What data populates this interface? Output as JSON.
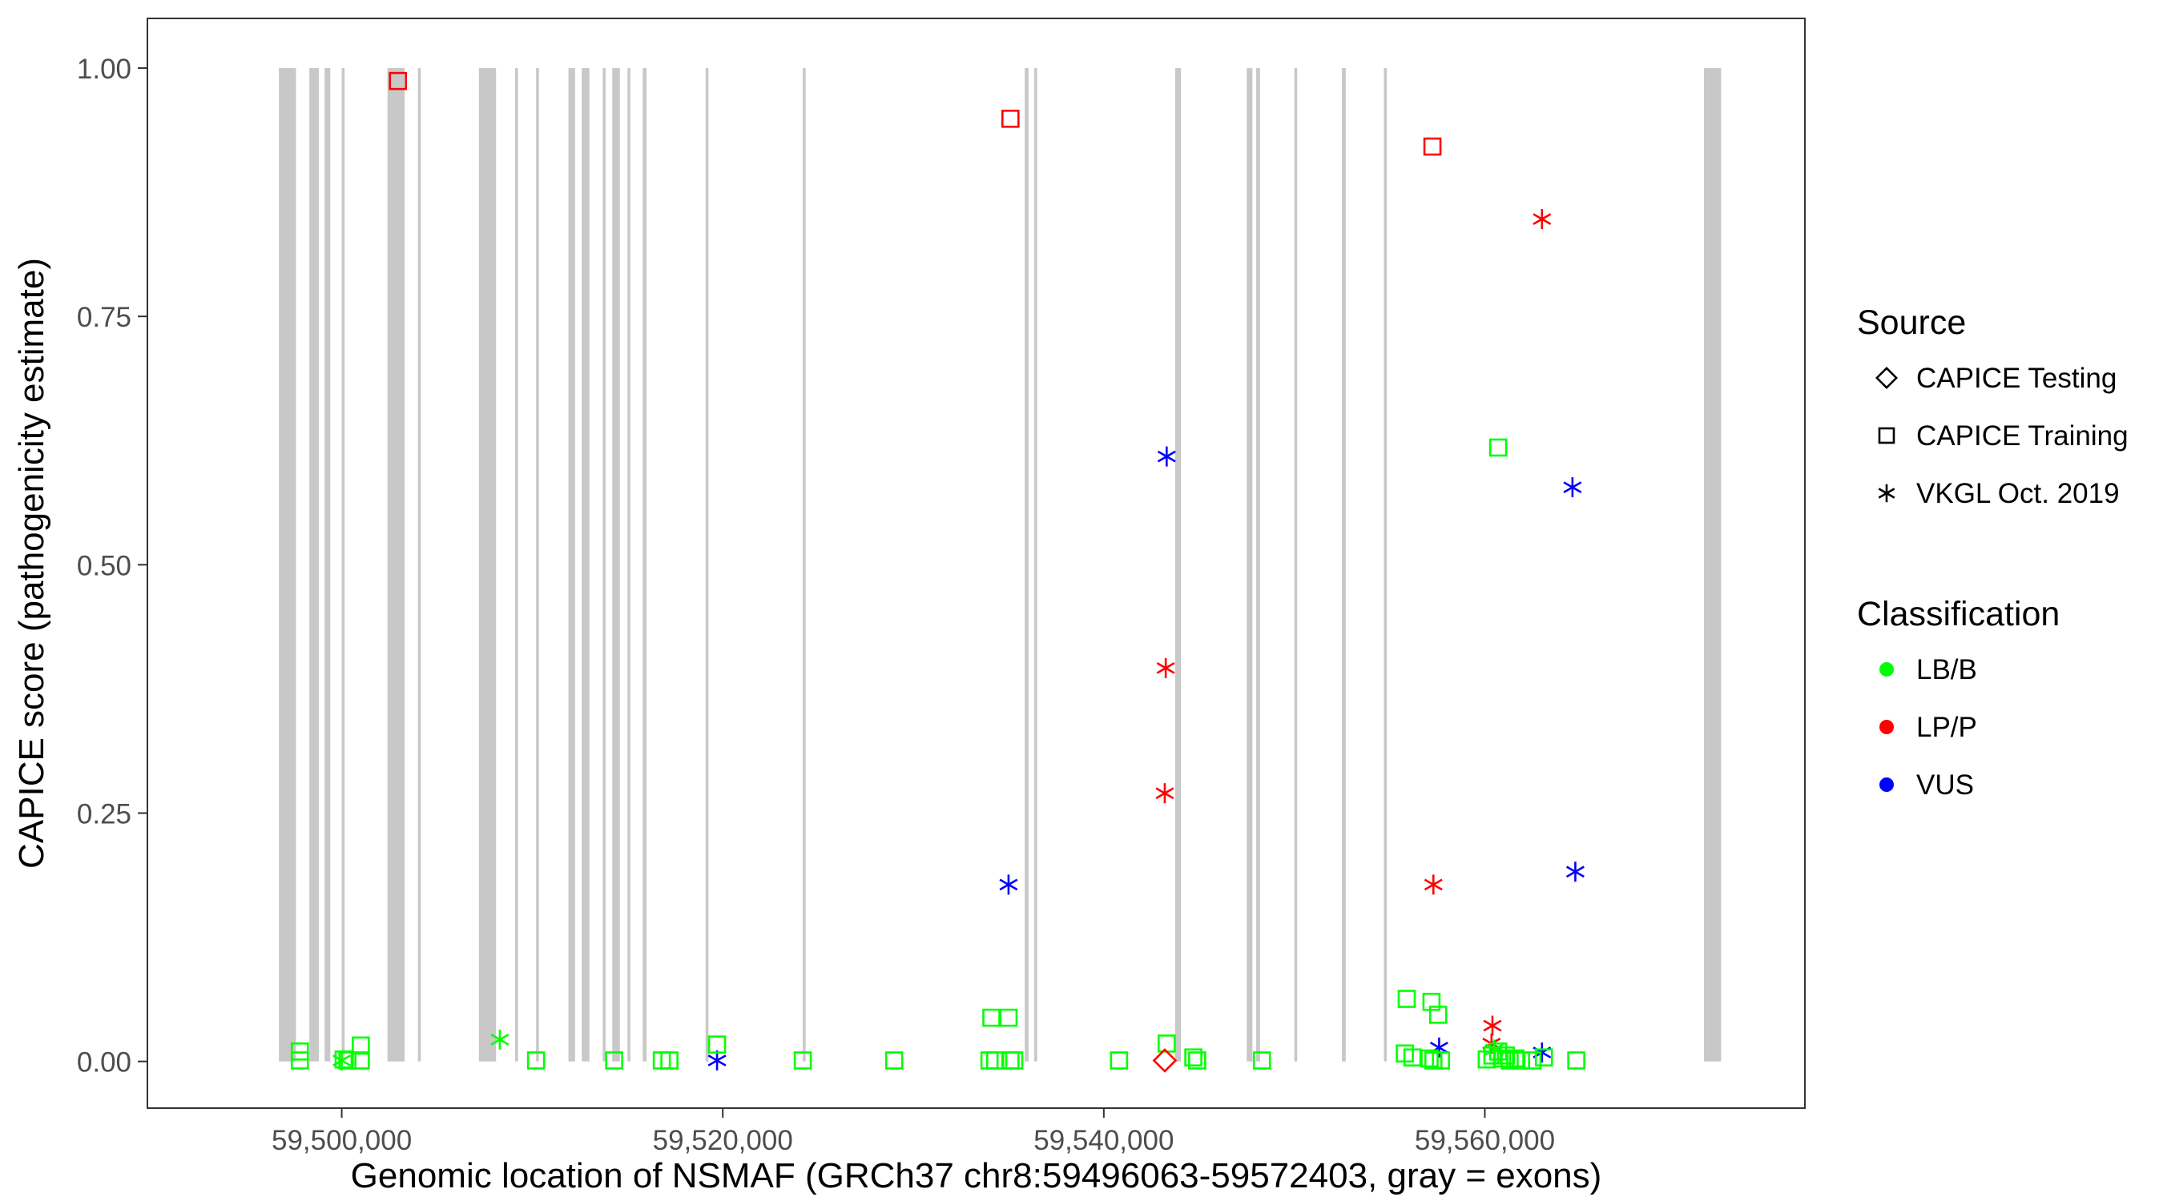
{
  "chart_data": {
    "type": "scatter",
    "title": "",
    "xlabel": "Genomic location of NSMAF (GRCh37 chr8:59496063-59572403, gray = exons)",
    "ylabel": "CAPICE score (pathogenicity estimate)",
    "xlim": [
      59489800,
      59576800
    ],
    "ylim": [
      -0.047,
      1.05
    ],
    "x_ticks": [
      59500000,
      59520000,
      59540000,
      59560000
    ],
    "x_tick_labels": [
      "59,500,000",
      "59,520,000",
      "59,540,000",
      "59,560,000"
    ],
    "y_ticks": [
      0,
      0.25,
      0.5,
      0.75,
      1.0
    ],
    "y_tick_labels": [
      "0.00",
      "0.25",
      "0.50",
      "0.75",
      "1.00"
    ],
    "grid": false,
    "exon_color": "#c8c8c8",
    "exons": [
      [
        59496700,
        59497600
      ],
      [
        59498300,
        59498800
      ],
      [
        59499100,
        59499400
      ],
      [
        59500000,
        59500150
      ],
      [
        59502400,
        59503300
      ],
      [
        59504000,
        59504150
      ],
      [
        59507200,
        59508100
      ],
      [
        59509100,
        59509250
      ],
      [
        59510200,
        59510350
      ],
      [
        59511900,
        59512250
      ],
      [
        59512600,
        59513000
      ],
      [
        59513700,
        59513850
      ],
      [
        59514200,
        59514600
      ],
      [
        59515000,
        59515150
      ],
      [
        59515800,
        59516000
      ],
      [
        59519100,
        59519250
      ],
      [
        59524200,
        59524350
      ],
      [
        59535850,
        59536050
      ],
      [
        59536350,
        59536500
      ],
      [
        59543750,
        59544050
      ],
      [
        59547500,
        59547800
      ],
      [
        59548000,
        59548200
      ],
      [
        59550000,
        59550150
      ],
      [
        59552500,
        59552700
      ],
      [
        59554700,
        59554850
      ],
      [
        59571500,
        59572403
      ]
    ],
    "legend": {
      "placement": "right",
      "source_title": "Source",
      "source_items": [
        {
          "label": "CAPICE Testing",
          "marker": "diamond"
        },
        {
          "label": "CAPICE Training",
          "marker": "square"
        },
        {
          "label": "VKGL Oct. 2019",
          "marker": "asterisk"
        }
      ],
      "class_title": "Classification",
      "class_items": [
        {
          "label": "LB/B",
          "color": "#00ff00"
        },
        {
          "label": "LP/P",
          "color": "#ff0000"
        },
        {
          "label": "VUS",
          "color": "#0000ff"
        }
      ]
    },
    "series": [
      {
        "source": "CAPICE Training",
        "classification": "LP/P",
        "marker": "square",
        "color": "#ff0000",
        "points": [
          [
            59502950,
            0.987
          ],
          [
            59535100,
            0.949
          ],
          [
            59557250,
            0.921
          ]
        ]
      },
      {
        "source": "VKGL Oct. 2019",
        "classification": "LP/P",
        "marker": "asterisk",
        "color": "#ff0000",
        "points": [
          [
            59563000,
            0.848
          ],
          [
            59543250,
            0.396
          ],
          [
            59543200,
            0.27
          ],
          [
            59557300,
            0.178
          ],
          [
            59560400,
            0.036
          ],
          [
            59560350,
            0.018
          ]
        ]
      },
      {
        "source": "VKGL Oct. 2019",
        "classification": "VUS",
        "marker": "asterisk",
        "color": "#0000ff",
        "points": [
          [
            59543300,
            0.609
          ],
          [
            59564600,
            0.578
          ],
          [
            59535000,
            0.178
          ],
          [
            59564750,
            0.191
          ],
          [
            59557600,
            0.014
          ],
          [
            59563000,
            0.009
          ],
          [
            59519700,
            0.001
          ]
        ]
      },
      {
        "source": "VKGL Oct. 2019",
        "classification": "LB/B",
        "marker": "asterisk",
        "color": "#00ff00",
        "points": [
          [
            59508300,
            0.022
          ],
          [
            59500000,
            0.001
          ],
          [
            59560500,
            0.012
          ]
        ]
      },
      {
        "source": "CAPICE Training",
        "classification": "LB/B",
        "marker": "square",
        "color": "#00ff00",
        "points": [
          [
            59560700,
            0.618
          ],
          [
            59555900,
            0.063
          ],
          [
            59557200,
            0.06
          ],
          [
            59557550,
            0.047
          ],
          [
            59534100,
            0.044
          ],
          [
            59535000,
            0.044
          ],
          [
            59543300,
            0.018
          ],
          [
            59519700,
            0.017
          ],
          [
            59501000,
            0.016
          ],
          [
            59497800,
            0.01
          ],
          [
            59555800,
            0.008
          ],
          [
            59556200,
            0.004
          ],
          [
            59557100,
            0.003
          ],
          [
            59497800,
            0.001
          ],
          [
            59500100,
            0.002
          ],
          [
            59500300,
            0.001
          ],
          [
            59501000,
            0.001
          ],
          [
            59510200,
            0.001
          ],
          [
            59514300,
            0.001
          ],
          [
            59516800,
            0.001
          ],
          [
            59517200,
            0.001
          ],
          [
            59524200,
            0.001
          ],
          [
            59529000,
            0.001
          ],
          [
            59534000,
            0.001
          ],
          [
            59534300,
            0.001
          ],
          [
            59535100,
            0.001
          ],
          [
            59535300,
            0.001
          ],
          [
            59540800,
            0.001
          ],
          [
            59544700,
            0.004
          ],
          [
            59544900,
            0.001
          ],
          [
            59548300,
            0.001
          ],
          [
            59557300,
            0.001
          ],
          [
            59557700,
            0.001
          ],
          [
            59560100,
            0.002
          ],
          [
            59560400,
            0.006
          ],
          [
            59560700,
            0.01
          ],
          [
            59560900,
            0.003
          ],
          [
            59561100,
            0.006
          ],
          [
            59561300,
            0.001
          ],
          [
            59561600,
            0.003
          ],
          [
            59561900,
            0.001
          ],
          [
            59562500,
            0.001
          ],
          [
            59563100,
            0.004
          ],
          [
            59564800,
            0.001
          ]
        ]
      },
      {
        "source": "CAPICE Testing",
        "classification": "LP/P",
        "marker": "diamond",
        "color": "#ff0000",
        "points": [
          [
            59543200,
            0.001
          ]
        ]
      }
    ]
  }
}
